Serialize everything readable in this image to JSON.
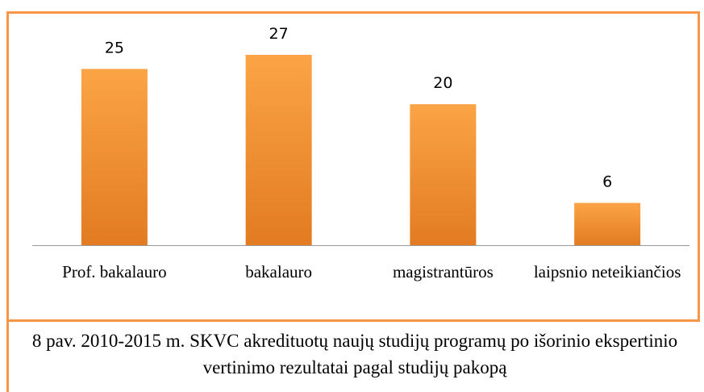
{
  "chart_data": {
    "type": "bar",
    "categories": [
      "Prof. bakalauro",
      "bakalauro",
      "magistrantūros",
      "laipsnio neteikiančios"
    ],
    "values": [
      25,
      27,
      20,
      6
    ],
    "color": "#f79646",
    "caption": "8 pav. 2010-2015 m. SKVC akredituotų naujų studijų programų po išorinio ekspertinio vertinimo rezultatai pagal studijų pakopą"
  }
}
